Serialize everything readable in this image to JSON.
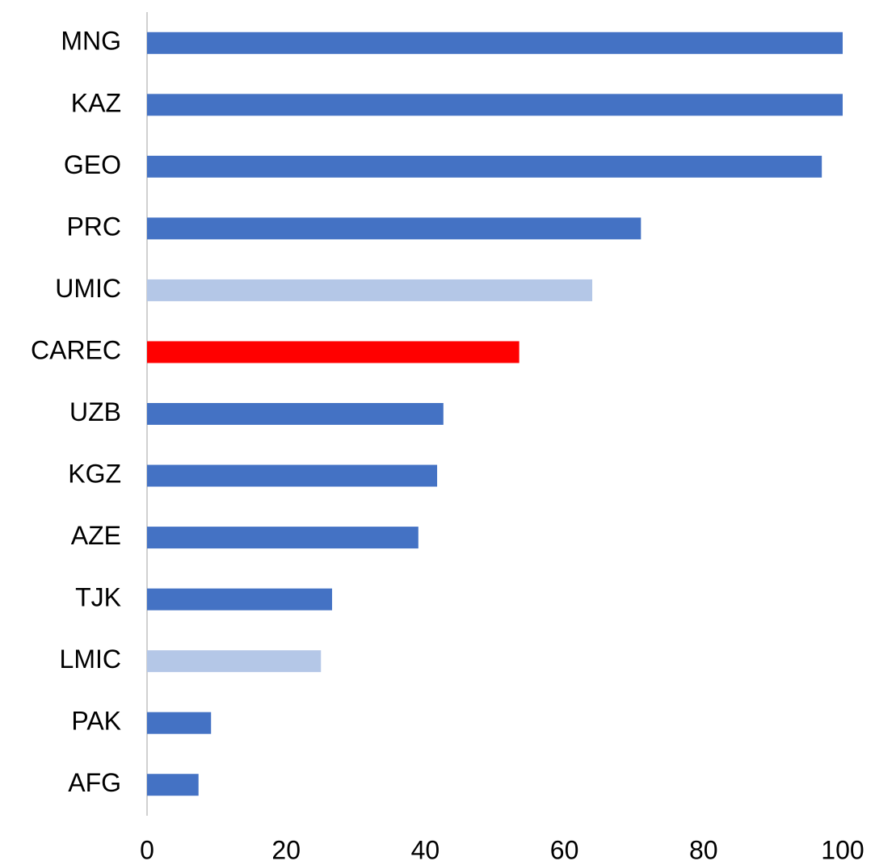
{
  "chart_data": {
    "type": "hbar",
    "categories": [
      "MNG",
      "KAZ",
      "GEO",
      "PRC",
      "UMIC",
      "CAREC",
      "UZB",
      "KGZ",
      "AZE",
      "TJK",
      "LMIC",
      "PAK",
      "AFG"
    ],
    "values": [
      100,
      100,
      97,
      71,
      64,
      53.5,
      42.6,
      41.7,
      39,
      26.6,
      25,
      9.2,
      7.4
    ],
    "colors": [
      "#4472c4",
      "#4472c4",
      "#4472c4",
      "#4472c4",
      "#b4c7e7",
      "#ff0000",
      "#4472c4",
      "#4472c4",
      "#4472c4",
      "#4472c4",
      "#b4c7e7",
      "#4472c4",
      "#4472c4"
    ],
    "xlim": [
      0,
      100
    ],
    "xticks": [
      0,
      20,
      40,
      60,
      80,
      100
    ],
    "grid": false
  }
}
